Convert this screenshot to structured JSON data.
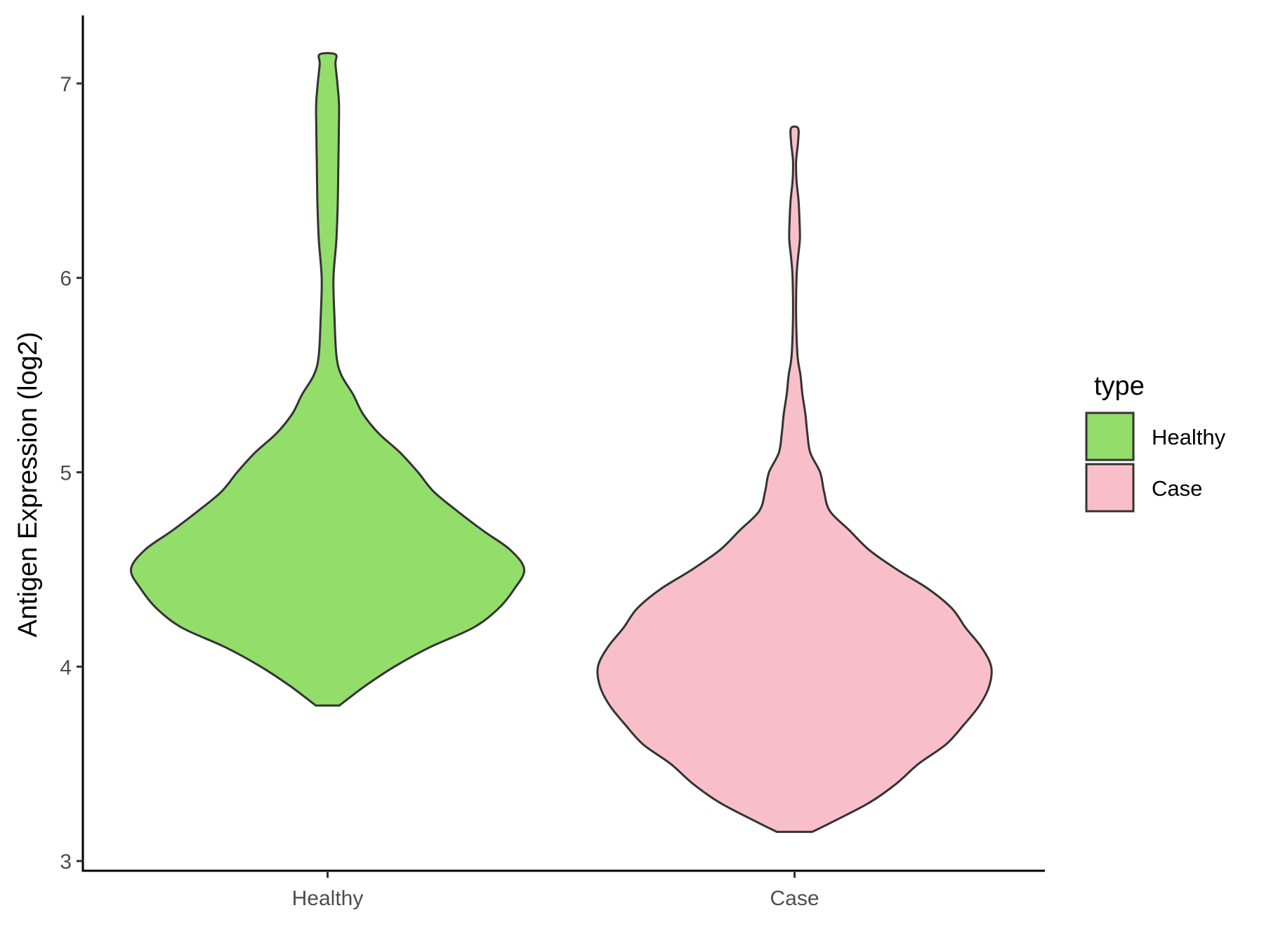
{
  "chart_data": {
    "type": "violin",
    "ylabel": "Antigen Expression (log2)",
    "xlabel": "",
    "ylim": [
      2.95,
      7.35
    ],
    "yticks": [
      3,
      4,
      5,
      6,
      7
    ],
    "categories": [
      "Healthy",
      "Case"
    ],
    "grid": false,
    "legend": {
      "title": "type",
      "placement": "right",
      "entries": [
        {
          "label": "Healthy",
          "color": "#93dd6a"
        },
        {
          "label": "Case",
          "color": "#f8bfca"
        }
      ]
    },
    "series": [
      {
        "name": "Healthy",
        "color": "#93dd6a",
        "min": 3.8,
        "max": 7.15,
        "density_profile": [
          [
            3.8,
            0.06
          ],
          [
            3.9,
            0.19
          ],
          [
            4.0,
            0.34
          ],
          [
            4.1,
            0.52
          ],
          [
            4.2,
            0.74
          ],
          [
            4.3,
            0.87
          ],
          [
            4.4,
            0.95
          ],
          [
            4.5,
            1.0
          ],
          [
            4.6,
            0.93
          ],
          [
            4.7,
            0.79
          ],
          [
            4.8,
            0.66
          ],
          [
            4.9,
            0.54
          ],
          [
            5.0,
            0.46
          ],
          [
            5.1,
            0.37
          ],
          [
            5.2,
            0.26
          ],
          [
            5.3,
            0.18
          ],
          [
            5.4,
            0.13
          ],
          [
            5.5,
            0.07
          ],
          [
            5.6,
            0.045
          ],
          [
            5.8,
            0.035
          ],
          [
            6.0,
            0.03
          ],
          [
            6.2,
            0.045
          ],
          [
            6.4,
            0.052
          ],
          [
            6.6,
            0.055
          ],
          [
            6.8,
            0.058
          ],
          [
            6.9,
            0.058
          ],
          [
            7.0,
            0.05
          ],
          [
            7.1,
            0.04
          ],
          [
            7.15,
            0.04
          ]
        ]
      },
      {
        "name": "Case",
        "color": "#f8bfca",
        "min": 3.15,
        "max": 6.77,
        "density_profile": [
          [
            3.15,
            0.09
          ],
          [
            3.2,
            0.19
          ],
          [
            3.3,
            0.38
          ],
          [
            3.4,
            0.52
          ],
          [
            3.5,
            0.63
          ],
          [
            3.6,
            0.77
          ],
          [
            3.7,
            0.86
          ],
          [
            3.8,
            0.94
          ],
          [
            3.9,
            0.99
          ],
          [
            4.0,
            1.0
          ],
          [
            4.1,
            0.95
          ],
          [
            4.2,
            0.87
          ],
          [
            4.3,
            0.8
          ],
          [
            4.4,
            0.68
          ],
          [
            4.5,
            0.52
          ],
          [
            4.6,
            0.38
          ],
          [
            4.7,
            0.28
          ],
          [
            4.8,
            0.18
          ],
          [
            4.9,
            0.15
          ],
          [
            5.0,
            0.13
          ],
          [
            5.1,
            0.08
          ],
          [
            5.2,
            0.065
          ],
          [
            5.3,
            0.055
          ],
          [
            5.4,
            0.04
          ],
          [
            5.5,
            0.03
          ],
          [
            5.6,
            0.015
          ],
          [
            5.8,
            0.008
          ],
          [
            6.0,
            0.01
          ],
          [
            6.1,
            0.017
          ],
          [
            6.2,
            0.027
          ],
          [
            6.3,
            0.025
          ],
          [
            6.4,
            0.02
          ],
          [
            6.5,
            0.01
          ],
          [
            6.6,
            0.008
          ],
          [
            6.7,
            0.018
          ],
          [
            6.77,
            0.018
          ]
        ]
      }
    ]
  }
}
